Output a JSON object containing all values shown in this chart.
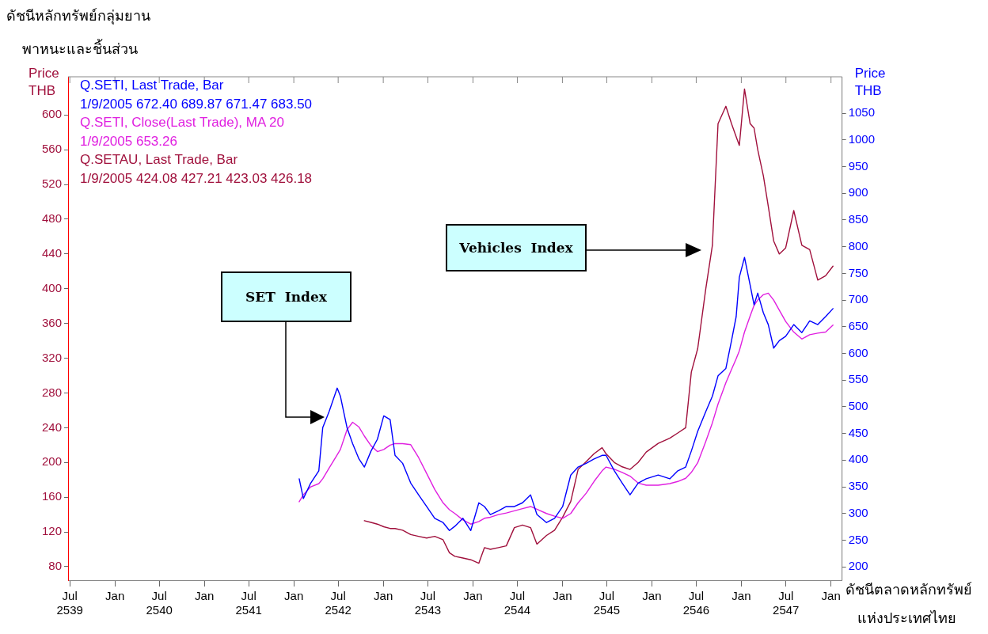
{
  "chart_data": {
    "type": "line",
    "ylabel": "Price\nTHB",
    "y2label": "Price\nTHB",
    "annotations": [
      "ดัชนีหลักทรัพย์กลุ่มยาน\nพาหนะและชิ้นส่วน",
      "ดัชนีตลาดหลักทรัพย์\nแห่งประเทศไทย",
      "SET  Index",
      "Vehicles  Index"
    ],
    "x": [
      "1999-01-23",
      "1999-02-09",
      "1999-03-11",
      "1999-04-13",
      "1999-04-29",
      "1999-05-25",
      "1999-06-27",
      "1999-07-10",
      "1999-08-06",
      "1999-08-29",
      "1999-09-24",
      "1999-10-16",
      "1999-11-12",
      "1999-12-08",
      "2000-01-03",
      "2000-01-29",
      "2000-02-18",
      "2000-03-20",
      "2000-04-22",
      "2000-05-24",
      "2000-06-26",
      "2000-07-29",
      "2000-09-01",
      "2000-09-27",
      "2000-10-19",
      "2000-11-21",
      "2000-12-23",
      "2001-01-25",
      "2001-02-17",
      "2001-03-13",
      "2001-04-15",
      "2001-05-17",
      "2001-06-19",
      "2001-07-22",
      "2001-08-24",
      "2001-09-19",
      "2001-10-28",
      "2001-11-30",
      "2002-01-02",
      "2002-02-04",
      "2002-03-06",
      "2002-04-08",
      "2002-05-10",
      "2002-06-12",
      "2002-06-28",
      "2002-08-01",
      "2002-09-02",
      "2002-10-04",
      "2002-11-06",
      "2002-12-09",
      "2003-01-27",
      "2003-03-15",
      "2003-04-17",
      "2003-05-19",
      "2003-06-11",
      "2003-07-07",
      "2003-08-09",
      "2003-09-05",
      "2003-09-28",
      "2003-10-30",
      "2003-11-22",
      "2003-12-11",
      "2003-12-24",
      "2004-01-14",
      "2004-02-06",
      "2004-02-22",
      "2004-03-08",
      "2004-03-31",
      "2004-04-20",
      "2004-05-12",
      "2004-06-04",
      "2004-06-30",
      "2004-08-02",
      "2004-09-04",
      "2004-10-06",
      "2004-11-08",
      "2004-12-10",
      "2005-01-09"
    ],
    "series": [
      {
        "name": "Q.SETI, Last Trade, Bar\n1/9/2005 672.40 689.87 671.47 683.50",
        "color": "#0000ff",
        "axis": "y2",
        "values": [
          365,
          328,
          357,
          380,
          461,
          491,
          535,
          520,
          461,
          431,
          402,
          387,
          417,
          439,
          483,
          476,
          409,
          394,
          357,
          335,
          313,
          291,
          283,
          268,
          276,
          291,
          268,
          320,
          313,
          298,
          305,
          313,
          313,
          320,
          335,
          298,
          283,
          291,
          313,
          372,
          387,
          394,
          402,
          409,
          409,
          380,
          357,
          335,
          357,
          365,
          372,
          365,
          380,
          387,
          417,
          454,
          491,
          520,
          558,
          572,
          624,
          669,
          743,
          780,
          728,
          691,
          713,
          676,
          654,
          610,
          624,
          632,
          654,
          639,
          661,
          654,
          669,
          684
        ]
      },
      {
        "name": "Q.SETI, Close(Last Trade), MA 20\n1/9/2005 653.26",
        "color": "#e020e0",
        "axis": "y2",
        "values": [
          322,
          335,
          350,
          356,
          365,
          385,
          410,
          420,
          457,
          471,
          462,
          445,
          427,
          416,
          420,
          428,
          431,
          431,
          429,
          405,
          375,
          345,
          320,
          307,
          300,
          288,
          280,
          285,
          291,
          293,
          298,
          301,
          305,
          309,
          313,
          308,
          300,
          295,
          291,
          300,
          320,
          338,
          360,
          380,
          387,
          383,
          377,
          370,
          357,
          353,
          353,
          356,
          360,
          366,
          377,
          395,
          435,
          470,
          505,
          545,
          570,
          590,
          605,
          640,
          670,
          690,
          700,
          710,
          713,
          700,
          681,
          660,
          640,
          627,
          635,
          638,
          640,
          653
        ]
      },
      {
        "name": "Q.SETAU, Last Trade, Bar\n1/9/2005 424.08 427.21 423.03 426.18",
        "color": "#a0103c",
        "axis": "y",
        "values": [
          null,
          null,
          null,
          null,
          null,
          null,
          null,
          null,
          null,
          null,
          null,
          133,
          131,
          129,
          126,
          124,
          124,
          122,
          117,
          115,
          113,
          115,
          111,
          96,
          92,
          90,
          88,
          84,
          102,
          100,
          102,
          104,
          125,
          128,
          125,
          106,
          116,
          122,
          137,
          155,
          192,
          201,
          210,
          217,
          210,
          200,
          195,
          192,
          200,
          212,
          222,
          228,
          234,
          240,
          304,
          331,
          400,
          450,
          590,
          610,
          590,
          575,
          565,
          630,
          590,
          585,
          560,
          530,
          495,
          455,
          440,
          447,
          490,
          450,
          445,
          410,
          415,
          426
        ]
      }
    ],
    "xlim": [
      "1996-06-24",
      "2005-02-15"
    ],
    "xticks": [
      {
        "value": "1996-07-01",
        "label": "Jul\n2539"
      },
      {
        "value": "1997-01-01",
        "label": "Jan"
      },
      {
        "value": "1997-07-01",
        "label": "Jul\n2540"
      },
      {
        "value": "1998-01-01",
        "label": "Jan"
      },
      {
        "value": "1998-07-01",
        "label": "Jul\n2541"
      },
      {
        "value": "1999-01-01",
        "label": "Jan"
      },
      {
        "value": "1999-07-01",
        "label": "Jul\n2542"
      },
      {
        "value": "2000-01-01",
        "label": "Jan"
      },
      {
        "value": "2000-07-01",
        "label": "Jul\n2543"
      },
      {
        "value": "2001-01-01",
        "label": "Jan"
      },
      {
        "value": "2001-07-01",
        "label": "Jul\n2544"
      },
      {
        "value": "2002-01-01",
        "label": "Jan"
      },
      {
        "value": "2002-07-01",
        "label": "Jul\n2545"
      },
      {
        "value": "2003-01-01",
        "label": "Jan"
      },
      {
        "value": "2003-07-01",
        "label": "Jul\n2546"
      },
      {
        "value": "2004-01-01",
        "label": "Jan"
      },
      {
        "value": "2004-07-01",
        "label": "Jul\n2547"
      },
      {
        "value": "2005-01-01",
        "label": "Jan"
      }
    ],
    "ylim": [
      64.5,
      644
    ],
    "yticks": [
      80,
      120,
      160,
      200,
      240,
      280,
      320,
      360,
      400,
      440,
      480,
      520,
      560,
      600
    ],
    "y2lim": [
      175,
      1118.5
    ],
    "y2ticks": [
      200,
      250,
      300,
      350,
      400,
      450,
      500,
      550,
      600,
      650,
      700,
      750,
      800,
      850,
      900,
      950,
      1000,
      1050
    ],
    "grid": false,
    "legend": "top left",
    "marker": "none",
    "line_style": "solid"
  }
}
